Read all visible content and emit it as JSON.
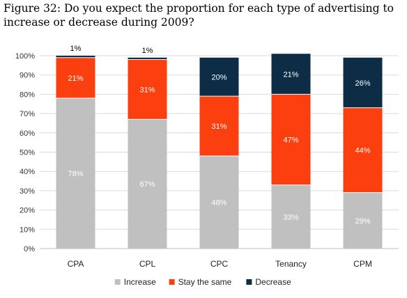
{
  "chart_data": {
    "type": "bar",
    "stacked": true,
    "title": "Figure 32: Do you expect the proportion for each type of advertising to increase or decrease during 2009?",
    "xlabel": "",
    "ylabel": "",
    "ylim": [
      0,
      100
    ],
    "yticks": [
      "0%",
      "10%",
      "20%",
      "30%",
      "40%",
      "50%",
      "60%",
      "70%",
      "80%",
      "90%",
      "100%"
    ],
    "grid": true,
    "legend_position": "bottom",
    "categories": [
      "CPA",
      "CPL",
      "CPC",
      "Tenancy",
      "CPM"
    ],
    "series": [
      {
        "name": "Increase",
        "color": "#c0c0c0",
        "label_color": "#ffffff",
        "values": [
          78,
          67,
          48,
          33,
          29
        ],
        "labels": [
          "78%",
          "67%",
          "48%",
          "33%",
          "29%"
        ]
      },
      {
        "name": "Stay the same",
        "color": "#fb3f0f",
        "label_color": "#ffffff",
        "values": [
          21,
          31,
          31,
          47,
          44
        ],
        "labels": [
          "21%",
          "31%",
          "31%",
          "47%",
          "44%"
        ]
      },
      {
        "name": "Decrease",
        "color": "#0c2d45",
        "label_color": "#ffffff",
        "values": [
          1,
          1,
          20,
          21,
          26
        ],
        "labels": [
          "1%",
          "1%",
          "20%",
          "21%",
          "26%"
        ]
      }
    ]
  }
}
